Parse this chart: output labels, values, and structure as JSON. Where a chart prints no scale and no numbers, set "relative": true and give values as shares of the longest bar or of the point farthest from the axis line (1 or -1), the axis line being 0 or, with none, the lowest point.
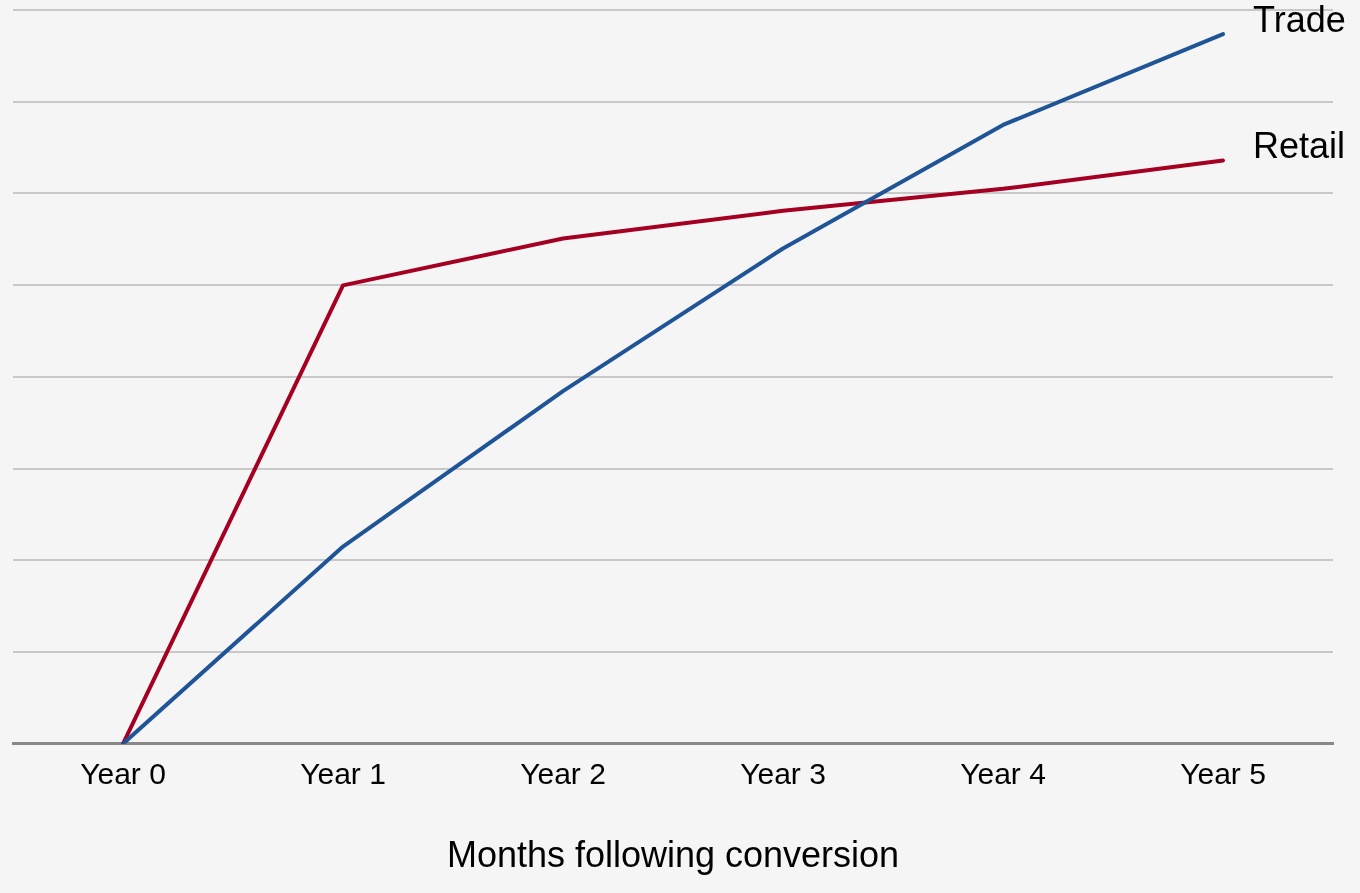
{
  "chart_data": {
    "type": "line",
    "xlabel": "Months following conversion",
    "relative": true,
    "grid": "y",
    "legend": false,
    "marker": "none",
    "line_style": "solid",
    "categories": [
      "Year 0",
      "Year 1",
      "Year 2",
      "Year 3",
      "Year 4",
      "Year 5"
    ],
    "series": [
      {
        "name": "Trade",
        "color": "#1f5597",
        "values": [
          0,
          0.278,
          0.497,
          0.698,
          0.872,
          1
        ]
      },
      {
        "name": "Retail",
        "color": "#a50021",
        "values": [
          0,
          0.646,
          0.712,
          0.751,
          0.782,
          0.822
        ]
      }
    ]
  }
}
